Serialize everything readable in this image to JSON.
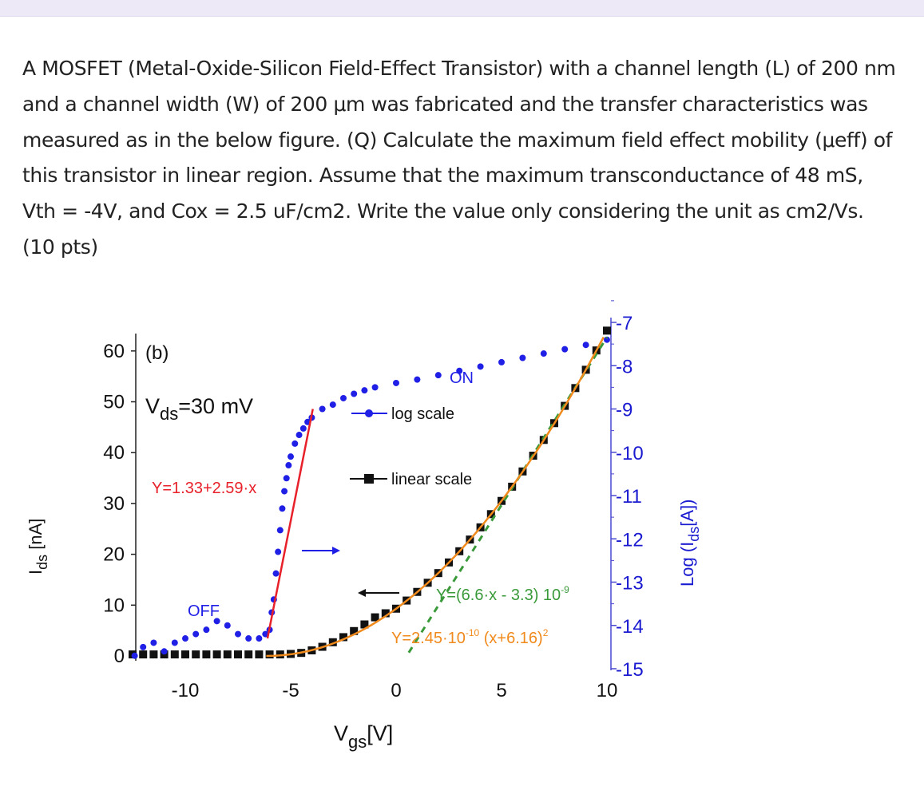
{
  "question": {
    "text": "A MOSFET (Metal-Oxide-Silicon Field-Effect Transistor) with a channel length (L) of 200 nm and a channel width (W) of 200 μm was fabricated and the transfer characteristics was measured as in the below figure. (Q) Calculate the maximum field effect mobility (μeff) of this transistor in linear region. Assume that the maximum transconductance of 48 mS, Vth = -4V, and Cox = 2.5 uF/cm2. Write the value only considering the unit as cm2/Vs. (10 pts)"
  },
  "chart_data": {
    "type": "scatter",
    "panel_label": "(b)",
    "condition": {
      "main": "V",
      "sub": "ds",
      "rest": "=30 mV"
    },
    "xlabel": {
      "main": "V",
      "sub": "gs",
      "rest": "[V]"
    },
    "ylabel_left": {
      "main": "I",
      "sub": "ds",
      "rest": " [nA]"
    },
    "ylabel_right": {
      "pre": "Log (I",
      "sub": "ds",
      "rest": "[A])"
    },
    "xlim": [
      -12.5,
      10.2
    ],
    "ylim_left": [
      0,
      60
    ],
    "ylim_right": [
      -15,
      -7
    ],
    "x_ticks": [
      "-10",
      "-5",
      "0",
      "5",
      "10"
    ],
    "x_tick_values": [
      -10,
      -5,
      0,
      5,
      10
    ],
    "y_left_ticks": [
      "0",
      "10",
      "20",
      "30",
      "40",
      "50",
      "60"
    ],
    "y_left_tick_values": [
      0,
      10,
      20,
      30,
      40,
      50,
      60
    ],
    "y_right_ticks": [
      "-7",
      "-8",
      "-9",
      "-10",
      "-11",
      "-12",
      "-13",
      "-14",
      "-15"
    ],
    "y_right_tick_values": [
      -7,
      -8,
      -9,
      -10,
      -11,
      -12,
      -13,
      -14,
      -15
    ],
    "colors": {
      "log": "#1f1fe6",
      "linear": "#111111",
      "red_fit": "#e8202a",
      "green_fit": "#3a9a3a",
      "orange_fit": "#f08a1c",
      "right_axis": "#4848d0"
    },
    "series": [
      {
        "name": "log scale",
        "axis": "right",
        "marker": "circle",
        "x": [
          -12.4,
          -12,
          -11.5,
          -11,
          -10.5,
          -10,
          -9.5,
          -9,
          -8.5,
          -8,
          -7.5,
          -7,
          -6.5,
          -6.2,
          -6,
          -5.9,
          -5.8,
          -5.7,
          -5.6,
          -5.5,
          -5.4,
          -5.3,
          -5.2,
          -5.1,
          -5,
          -4.8,
          -4.6,
          -4.4,
          -4.2,
          -4,
          -3.5,
          -3,
          -2.5,
          -2,
          -1.5,
          -1,
          0,
          1,
          2,
          3,
          4,
          5,
          6,
          7,
          8,
          9,
          10
        ],
        "y": [
          -14.7,
          -14.5,
          -14.4,
          -14.6,
          -14.4,
          -14.3,
          -14.2,
          -14.1,
          -13.9,
          -14.0,
          -14.2,
          -14.3,
          -14.3,
          -14.2,
          -14.1,
          -13.7,
          -13.4,
          -12.8,
          -12.3,
          -11.8,
          -11.3,
          -10.9,
          -10.6,
          -10.3,
          -10.1,
          -9.8,
          -9.6,
          -9.45,
          -9.3,
          -9.2,
          -9.0,
          -8.9,
          -8.75,
          -8.65,
          -8.57,
          -8.5,
          -8.4,
          -8.32,
          -8.22,
          -8.12,
          -8.02,
          -7.92,
          -7.82,
          -7.72,
          -7.62,
          -7.52,
          -7.4
        ]
      },
      {
        "name": "linear scale",
        "axis": "left",
        "marker": "square",
        "x": [
          -12.5,
          -12,
          -11.5,
          -11,
          -10.5,
          -10,
          -9.5,
          -9,
          -8.5,
          -8,
          -7.5,
          -7,
          -6.5,
          -6,
          -5.5,
          -5,
          -4.5,
          -4,
          -3.5,
          -3,
          -2.5,
          -2,
          -1.5,
          -1,
          -0.5,
          0,
          0.5,
          1,
          1.5,
          2,
          2.5,
          3,
          3.5,
          4,
          4.5,
          5,
          5.5,
          6,
          6.5,
          7,
          7.5,
          8,
          8.5,
          9,
          9.5,
          10
        ],
        "y": [
          0.3,
          0.3,
          0.3,
          0.3,
          0.3,
          0.3,
          0.3,
          0.3,
          0.3,
          0.3,
          0.3,
          0.3,
          0.3,
          0.3,
          0.3,
          0.4,
          0.6,
          1.1,
          1.8,
          2.7,
          3.7,
          4.9,
          6.2,
          7.6,
          8.4,
          9.3,
          10.9,
          12.6,
          14.4,
          16.3,
          18.4,
          20.6,
          22.9,
          25.3,
          27.9,
          30.5,
          33.3,
          36.3,
          39.4,
          42.5,
          45.8,
          49.2,
          52.7,
          56.3,
          60.1,
          64.0
        ]
      }
    ],
    "fits": [
      {
        "label": "Y=1.33+2.59·x",
        "axis": "right",
        "color": "red",
        "x": [
          -6.1,
          -3.95
        ],
        "y": [
          -14.3,
          -9.0
        ]
      },
      {
        "label": "Y=(6.6·x - 3.3) 10",
        "exp": "-9",
        "axis": "left",
        "color": "green",
        "style": "dashed",
        "x": [
          0.6,
          10
        ],
        "y": [
          0.66,
          62.7
        ]
      },
      {
        "label": "Y=2.45·10",
        "exp": "-10",
        "label_rest": " (x+6.16)",
        "exp2": "2",
        "axis": "left",
        "color": "orange",
        "formula_coeff": 2.45,
        "formula_shift": 6.16
      }
    ],
    "annotations": {
      "on": "ON",
      "off": "OFF"
    },
    "legend": [
      {
        "label": "log scale"
      },
      {
        "label": "linear scale"
      }
    ]
  }
}
